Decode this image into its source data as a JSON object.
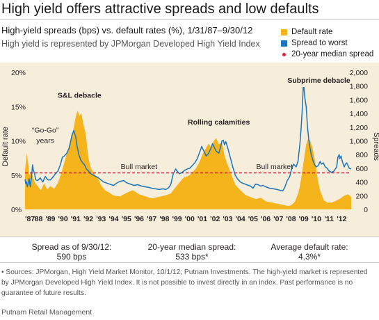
{
  "title": "High yield offers attractive spreads and low defaults",
  "subtitle": "High-yield spreads (bps) vs. default rates (%), 1/31/87–9/30/12",
  "subtitle2": "High yield is represented by JPMorgan Developed High Yield Index",
  "legend": [
    {
      "label": "Default rate",
      "color": "#f5b31c",
      "kind": "square"
    },
    {
      "label": "Spread to worst",
      "color": "#1b75bb",
      "kind": "square"
    },
    {
      "label": "20-year median spread",
      "color": "#e31b3c",
      "kind": "dot"
    }
  ],
  "stats": {
    "spread_label": "Spread as of 9/30/12:",
    "spread_value": "590 bps",
    "median_label": "20-year median spread:",
    "median_value": "533 bps*",
    "default_label": "Average default rate:",
    "default_value": "4.3%*"
  },
  "sources": "• Sources: JPMorgan, High Yield Market Monitor, 10/1/12; Putnam Investments. The high-yield market is represented by JPMorgan Developed High Yield Index. It is not possible to invest directly in an index. Past performance is no guarantee of future results.",
  "footer": "Putnam Retail Management",
  "chart_data": {
    "type": "area",
    "background": "#f7eddb",
    "xlim": [
      1987,
      2012.75
    ],
    "x_tick_labels": [
      "'87",
      "'88",
      "'89",
      "'90",
      "'91",
      "'92",
      "'93",
      "'94",
      "'95",
      "'96",
      "'97",
      "'98",
      "'99",
      "'00",
      "'01",
      "'02",
      "'03",
      "'04",
      "'05",
      "'06",
      "'07",
      "'08",
      "'09",
      "'10",
      "'11",
      "'12"
    ],
    "y_left": {
      "label": "Default  rate",
      "ticks": [
        "0%",
        "5%",
        "10%",
        "15%",
        "20%"
      ],
      "ylim": [
        0,
        20
      ]
    },
    "y_right": {
      "label": "Spreads",
      "ticks": [
        "0",
        "200",
        "400",
        "600",
        "800",
        "1,000",
        "1,200",
        "1,400",
        "1,600",
        "1,800",
        "2,000"
      ],
      "ylim": [
        0,
        2000
      ]
    },
    "series": [
      {
        "name": "Default rate",
        "axis": "left",
        "style": "area",
        "color": "#f5b31c",
        "points": [
          [
            1987.0,
            5.8
          ],
          [
            1987.15,
            8.2
          ],
          [
            1987.35,
            5.0
          ],
          [
            1987.5,
            5.5
          ],
          [
            1987.75,
            4.0
          ],
          [
            1988.0,
            3.4
          ],
          [
            1988.25,
            2.8
          ],
          [
            1988.5,
            3.8
          ],
          [
            1988.75,
            2.9
          ],
          [
            1989.0,
            3.4
          ],
          [
            1989.3,
            3.0
          ],
          [
            1989.6,
            3.9
          ],
          [
            1989.9,
            5.5
          ],
          [
            1990.2,
            7.5
          ],
          [
            1990.5,
            9.5
          ],
          [
            1990.8,
            11.5
          ],
          [
            1991.0,
            13.5
          ],
          [
            1991.15,
            14.4
          ],
          [
            1991.3,
            13.7
          ],
          [
            1991.45,
            14.0
          ],
          [
            1991.6,
            12.5
          ],
          [
            1991.8,
            11.0
          ],
          [
            1992.0,
            7.5
          ],
          [
            1992.2,
            6.0
          ],
          [
            1992.5,
            5.1
          ],
          [
            1992.8,
            4.4
          ],
          [
            1993.0,
            3.5
          ],
          [
            1993.3,
            2.8
          ],
          [
            1993.6,
            2.5
          ],
          [
            1994.0,
            2.0
          ],
          [
            1994.5,
            1.9
          ],
          [
            1995.0,
            2.4
          ],
          [
            1995.5,
            2.8
          ],
          [
            1996.0,
            2.2
          ],
          [
            1996.5,
            1.9
          ],
          [
            1997.0,
            1.6
          ],
          [
            1997.5,
            1.8
          ],
          [
            1998.0,
            2.0
          ],
          [
            1998.5,
            2.3
          ],
          [
            1999.0,
            3.5
          ],
          [
            1999.5,
            4.6
          ],
          [
            2000.0,
            5.0
          ],
          [
            2000.5,
            6.0
          ],
          [
            2000.8,
            7.0
          ],
          [
            2001.0,
            8.0
          ],
          [
            2001.3,
            9.0
          ],
          [
            2001.5,
            9.6
          ],
          [
            2001.7,
            9.0
          ],
          [
            2001.9,
            10.0
          ],
          [
            2002.1,
            10.4
          ],
          [
            2002.3,
            9.5
          ],
          [
            2002.55,
            9.8
          ],
          [
            2002.75,
            7.8
          ],
          [
            2003.0,
            6.5
          ],
          [
            2003.3,
            5.0
          ],
          [
            2003.6,
            3.6
          ],
          [
            2004.0,
            2.8
          ],
          [
            2004.4,
            2.1
          ],
          [
            2004.8,
            1.8
          ],
          [
            2005.2,
            1.5
          ],
          [
            2005.6,
            1.7
          ],
          [
            2006.0,
            1.2
          ],
          [
            2006.5,
            1.0
          ],
          [
            2007.0,
            0.8
          ],
          [
            2007.5,
            0.6
          ],
          [
            2007.8,
            0.5
          ],
          [
            2008.0,
            0.6
          ],
          [
            2008.3,
            1.1
          ],
          [
            2008.6,
            2.5
          ],
          [
            2008.8,
            4.5
          ],
          [
            2009.0,
            7.0
          ],
          [
            2009.2,
            9.5
          ],
          [
            2009.35,
            10.3
          ],
          [
            2009.5,
            10.1
          ],
          [
            2009.7,
            9.0
          ],
          [
            2009.9,
            7.0
          ],
          [
            2010.1,
            4.5
          ],
          [
            2010.3,
            2.7
          ],
          [
            2010.6,
            1.3
          ],
          [
            2010.9,
            1.0
          ],
          [
            2011.2,
            1.0
          ],
          [
            2011.6,
            1.3
          ],
          [
            2011.9,
            1.6
          ],
          [
            2012.2,
            2.0
          ],
          [
            2012.5,
            2.2
          ],
          [
            2012.75,
            1.8
          ]
        ]
      },
      {
        "name": "Spread to worst",
        "axis": "right",
        "style": "line",
        "color": "#1b75bb",
        "points": [
          [
            1987.0,
            440
          ],
          [
            1987.05,
            380
          ],
          [
            1987.12,
            400
          ],
          [
            1987.18,
            330
          ],
          [
            1987.25,
            380
          ],
          [
            1987.32,
            450
          ],
          [
            1987.42,
            330
          ],
          [
            1987.5,
            460
          ],
          [
            1987.6,
            650
          ],
          [
            1987.65,
            580
          ],
          [
            1987.75,
            520
          ],
          [
            1987.85,
            430
          ],
          [
            1988.0,
            420
          ],
          [
            1988.2,
            460
          ],
          [
            1988.4,
            400
          ],
          [
            1988.6,
            480
          ],
          [
            1988.8,
            430
          ],
          [
            1989.0,
            430
          ],
          [
            1989.2,
            470
          ],
          [
            1989.4,
            520
          ],
          [
            1989.6,
            560
          ],
          [
            1989.8,
            660
          ],
          [
            1989.95,
            760
          ],
          [
            1990.1,
            780
          ],
          [
            1990.3,
            820
          ],
          [
            1990.5,
            900
          ],
          [
            1990.7,
            1080
          ],
          [
            1990.85,
            1150
          ],
          [
            1991.0,
            1060
          ],
          [
            1991.1,
            930
          ],
          [
            1991.25,
            800
          ],
          [
            1991.4,
            720
          ],
          [
            1991.55,
            680
          ],
          [
            1991.7,
            650
          ],
          [
            1991.85,
            590
          ],
          [
            1992.0,
            560
          ],
          [
            1992.2,
            520
          ],
          [
            1992.4,
            500
          ],
          [
            1992.6,
            480
          ],
          [
            1992.8,
            460
          ],
          [
            1993.0,
            430
          ],
          [
            1993.2,
            400
          ],
          [
            1993.5,
            380
          ],
          [
            1993.8,
            360
          ],
          [
            1994.0,
            350
          ],
          [
            1994.2,
            380
          ],
          [
            1994.5,
            410
          ],
          [
            1994.8,
            420
          ],
          [
            1995.0,
            390
          ],
          [
            1995.3,
            370
          ],
          [
            1995.6,
            350
          ],
          [
            1995.9,
            360
          ],
          [
            1996.2,
            340
          ],
          [
            1996.5,
            330
          ],
          [
            1996.8,
            320
          ],
          [
            1997.0,
            310
          ],
          [
            1997.3,
            300
          ],
          [
            1997.6,
            290
          ],
          [
            1997.9,
            300
          ],
          [
            1998.1,
            290
          ],
          [
            1998.3,
            310
          ],
          [
            1998.5,
            360
          ],
          [
            1998.7,
            520
          ],
          [
            1998.9,
            590
          ],
          [
            1999.0,
            560
          ],
          [
            1999.2,
            520
          ],
          [
            1999.4,
            540
          ],
          [
            1999.6,
            570
          ],
          [
            1999.8,
            590
          ],
          [
            2000.0,
            600
          ],
          [
            2000.2,
            640
          ],
          [
            2000.4,
            680
          ],
          [
            2000.6,
            740
          ],
          [
            2000.8,
            840
          ],
          [
            2000.95,
            920
          ],
          [
            2001.1,
            860
          ],
          [
            2001.3,
            780
          ],
          [
            2001.5,
            820
          ],
          [
            2001.7,
            900
          ],
          [
            2001.8,
            960
          ],
          [
            2001.95,
            900
          ],
          [
            2002.1,
            850
          ],
          [
            2002.3,
            820
          ],
          [
            2002.45,
            920
          ],
          [
            2002.55,
            1000
          ],
          [
            2002.65,
            1010
          ],
          [
            2002.75,
            940
          ],
          [
            2002.85,
            990
          ],
          [
            2003.0,
            900
          ],
          [
            2003.2,
            760
          ],
          [
            2003.4,
            620
          ],
          [
            2003.6,
            500
          ],
          [
            2003.8,
            440
          ],
          [
            2004.0,
            400
          ],
          [
            2004.2,
            380
          ],
          [
            2004.5,
            360
          ],
          [
            2004.8,
            340
          ],
          [
            2005.0,
            310
          ],
          [
            2005.2,
            370
          ],
          [
            2005.4,
            360
          ],
          [
            2005.6,
            340
          ],
          [
            2005.8,
            350
          ],
          [
            2006.0,
            330
          ],
          [
            2006.3,
            310
          ],
          [
            2006.6,
            300
          ],
          [
            2006.9,
            290
          ],
          [
            2007.1,
            280
          ],
          [
            2007.35,
            270
          ],
          [
            2007.5,
            320
          ],
          [
            2007.7,
            420
          ],
          [
            2007.9,
            480
          ],
          [
            2008.0,
            560
          ],
          [
            2008.2,
            660
          ],
          [
            2008.4,
            620
          ],
          [
            2008.55,
            700
          ],
          [
            2008.7,
            950
          ],
          [
            2008.8,
            1200
          ],
          [
            2008.9,
            1500
          ],
          [
            2008.96,
            1780
          ],
          [
            2009.02,
            1780
          ],
          [
            2009.1,
            1620
          ],
          [
            2009.2,
            1500
          ],
          [
            2009.3,
            1200
          ],
          [
            2009.4,
            1020
          ],
          [
            2009.5,
            900
          ],
          [
            2009.6,
            800
          ],
          [
            2009.75,
            700
          ],
          [
            2009.9,
            640
          ],
          [
            2010.0,
            620
          ],
          [
            2010.15,
            640
          ],
          [
            2010.3,
            700
          ],
          [
            2010.4,
            660
          ],
          [
            2010.55,
            680
          ],
          [
            2010.7,
            620
          ],
          [
            2010.85,
            600
          ],
          [
            2011.0,
            560
          ],
          [
            2011.2,
            540
          ],
          [
            2011.4,
            560
          ],
          [
            2011.6,
            620
          ],
          [
            2011.7,
            760
          ],
          [
            2011.8,
            800
          ],
          [
            2011.85,
            740
          ],
          [
            2011.95,
            780
          ],
          [
            2012.05,
            700
          ],
          [
            2012.2,
            620
          ],
          [
            2012.3,
            660
          ],
          [
            2012.4,
            680
          ],
          [
            2012.5,
            640
          ],
          [
            2012.6,
            600
          ],
          [
            2012.75,
            590
          ]
        ]
      },
      {
        "name": "20-year median spread",
        "axis": "right",
        "style": "dashed",
        "color": "#e31b3c",
        "value": 533
      }
    ],
    "annotations": [
      {
        "text": "“Go-Go”",
        "x": 1988.6,
        "y": 1120,
        "weight": "normal"
      },
      {
        "text": "years",
        "x": 1988.6,
        "y": 970,
        "weight": "normal"
      },
      {
        "text": "S&L debacle",
        "x": 1991.3,
        "y": 1630,
        "weight": "bold"
      },
      {
        "text": "Bull market",
        "x": 1996.0,
        "y": 590,
        "weight": "normal"
      },
      {
        "text": "Rolling calamities",
        "x": 2002.3,
        "y": 1240,
        "weight": "bold"
      },
      {
        "text": "Bull market",
        "x": 2006.7,
        "y": 590,
        "weight": "normal"
      },
      {
        "text": "Subprime debacle",
        "x": 2010.2,
        "y": 1850,
        "weight": "bold"
      }
    ]
  }
}
